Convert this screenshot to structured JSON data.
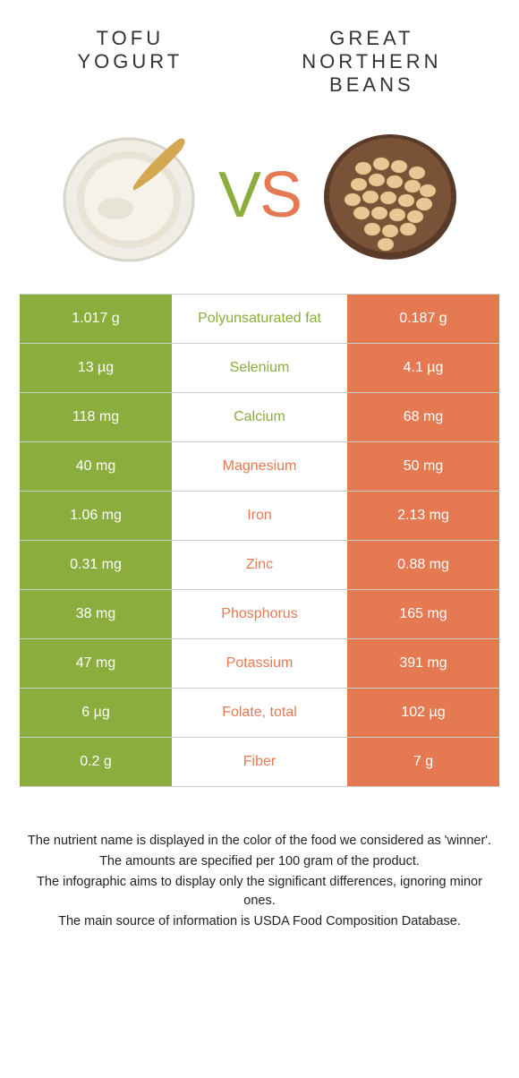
{
  "colors": {
    "left": "#8aad3e",
    "right": "#e57a52",
    "border": "#cccccc",
    "text": "#333333"
  },
  "foods": {
    "left": "TOFU\nYOGURT",
    "right": "GREAT\nNORTHERN\nBEANS"
  },
  "vs": {
    "v": "V",
    "s": "S"
  },
  "rows": [
    {
      "label": "Polyunsaturated fat",
      "left": "1.017 g",
      "right": "0.187 g",
      "winner": "left"
    },
    {
      "label": "Selenium",
      "left": "13 µg",
      "right": "4.1 µg",
      "winner": "left"
    },
    {
      "label": "Calcium",
      "left": "118 mg",
      "right": "68 mg",
      "winner": "left"
    },
    {
      "label": "Magnesium",
      "left": "40 mg",
      "right": "50 mg",
      "winner": "right"
    },
    {
      "label": "Iron",
      "left": "1.06 mg",
      "right": "2.13 mg",
      "winner": "right"
    },
    {
      "label": "Zinc",
      "left": "0.31 mg",
      "right": "0.88 mg",
      "winner": "right"
    },
    {
      "label": "Phosphorus",
      "left": "38 mg",
      "right": "165 mg",
      "winner": "right"
    },
    {
      "label": "Potassium",
      "left": "47 mg",
      "right": "391 mg",
      "winner": "right"
    },
    {
      "label": "Folate, total",
      "left": "6 µg",
      "right": "102 µg",
      "winner": "right"
    },
    {
      "label": "Fiber",
      "left": "0.2 g",
      "right": "7 g",
      "winner": "right"
    }
  ],
  "footer": [
    "The nutrient name is displayed in the color of the food we considered as 'winner'.",
    "The amounts are specified per 100 gram of the product.",
    "The infographic aims to display only the significant differences, ignoring minor ones.",
    "The main source of information is USDA Food Composition Database."
  ]
}
